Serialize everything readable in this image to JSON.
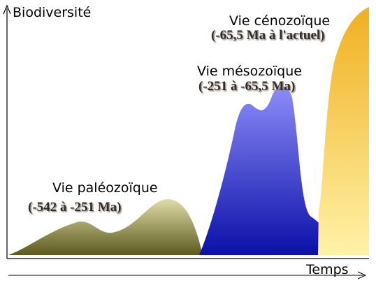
{
  "axes": {
    "y_label": "Biodiversité",
    "x_label": "Temps"
  },
  "eras": [
    {
      "name": "Vie paléozoïque",
      "period": "(-542 à -251 Ma)"
    },
    {
      "name": "Vie mésozoïque",
      "period": "(-251 à -65,5 Ma)"
    },
    {
      "name": "Vie cénozoïque",
      "period": "(-65,5 Ma à l'actuel)"
    }
  ]
}
